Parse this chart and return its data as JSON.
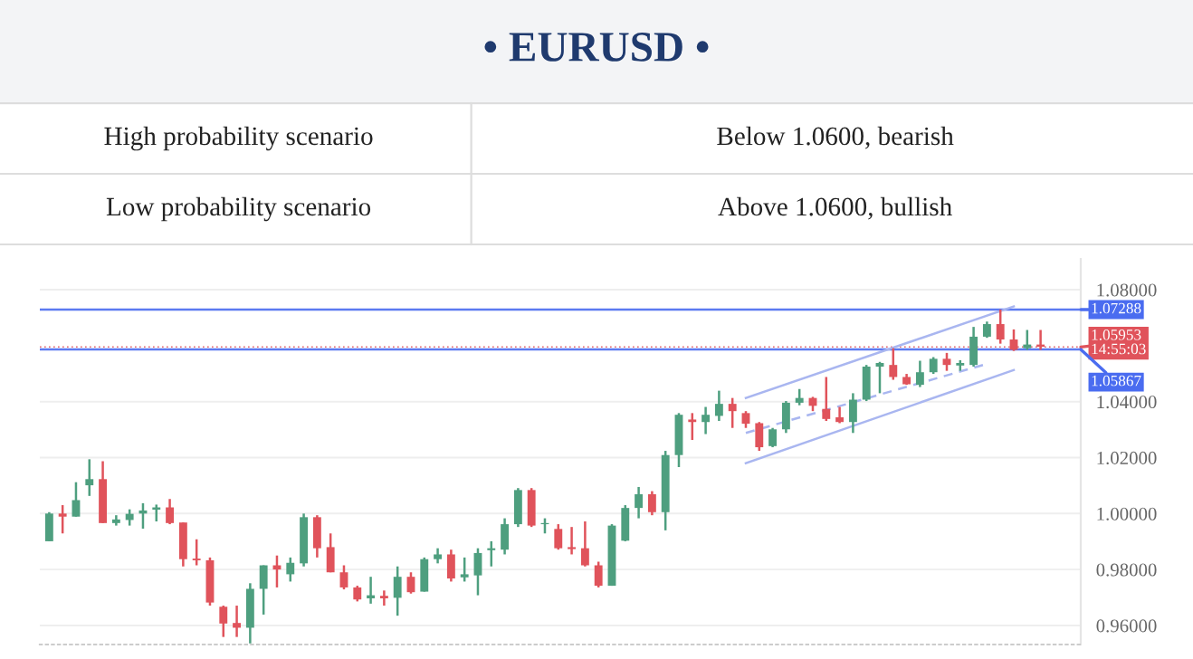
{
  "chart_data": {
    "type": "candlestick",
    "title": "• EURUSD •",
    "annotations": [
      "High probability scenario",
      "Below 1.0600, bearish",
      "Low probability scenario",
      "Above 1.0600, bullish"
    ],
    "categories": [
      null,
      null,
      null,
      null,
      null,
      null,
      null,
      null,
      null,
      null,
      null,
      null,
      null,
      null,
      null,
      null,
      null,
      null,
      null,
      null,
      null,
      null,
      null,
      null,
      null,
      null,
      null,
      null,
      null,
      null,
      null,
      null,
      null,
      null,
      null,
      null,
      null,
      null,
      null,
      null,
      null,
      null,
      null,
      null,
      null,
      null,
      null,
      null,
      null,
      null,
      null,
      null,
      null,
      null,
      null,
      null,
      null,
      null,
      null,
      null,
      null,
      null,
      null,
      null,
      null,
      null,
      null,
      null,
      null,
      null,
      null,
      null,
      null,
      null,
      null
    ],
    "ohlc": [
      [
        0.9901,
        1.0005,
        0.9901,
        1.0
      ],
      [
        1.0,
        1.003,
        0.9929,
        0.9989
      ],
      [
        0.9989,
        1.0112,
        0.9989,
        1.0048
      ],
      [
        1.0101,
        1.0194,
        1.0063,
        1.0123
      ],
      [
        1.0123,
        1.0187,
        0.9966,
        0.9966
      ],
      [
        0.9966,
        0.9994,
        0.9957,
        0.9979
      ],
      [
        0.9977,
        1.0015,
        0.9957,
        0.9999
      ],
      [
        1.0,
        1.0037,
        0.9946,
        1.0011
      ],
      [
        1.0014,
        1.0032,
        0.9972,
        1.0022
      ],
      [
        1.0022,
        1.0052,
        0.9962,
        0.9966
      ],
      [
        0.9968,
        0.9968,
        0.9811,
        0.9837
      ],
      [
        0.9839,
        0.9908,
        0.9815,
        0.9833
      ],
      [
        0.9833,
        0.9843,
        0.9671,
        0.9682
      ],
      [
        0.9667,
        0.9671,
        0.9559,
        0.9607
      ],
      [
        0.9609,
        0.9671,
        0.9559,
        0.9592
      ],
      [
        0.9592,
        0.9751,
        0.9536,
        0.9731
      ],
      [
        0.9731,
        0.9815,
        0.9639,
        0.9815
      ],
      [
        0.9815,
        0.985,
        0.9736,
        0.98
      ],
      [
        0.9783,
        0.9843,
        0.9757,
        0.9824
      ],
      [
        0.9822,
        1.0,
        0.9811,
        0.9987
      ],
      [
        0.9987,
        0.9994,
        0.9843,
        0.9876
      ],
      [
        0.988,
        0.9929,
        0.979,
        0.979
      ],
      [
        0.979,
        0.9815,
        0.9729,
        0.9736
      ],
      [
        0.9736,
        0.9742,
        0.9686,
        0.9693
      ],
      [
        0.9697,
        0.9774,
        0.9678,
        0.9708
      ],
      [
        0.9706,
        0.9725,
        0.9671,
        0.9697
      ],
      [
        0.9699,
        0.9811,
        0.9635,
        0.9774
      ],
      [
        0.9774,
        0.979,
        0.9714,
        0.9719
      ],
      [
        0.9721,
        0.9843,
        0.9721,
        0.9837
      ],
      [
        0.9837,
        0.9876,
        0.9822,
        0.9854
      ],
      [
        0.9854,
        0.9871,
        0.9757,
        0.9768
      ],
      [
        0.9772,
        0.9843,
        0.9757,
        0.9783
      ],
      [
        0.9779,
        0.9876,
        0.9708,
        0.9859
      ],
      [
        0.9869,
        0.9901,
        0.9811,
        0.9876
      ],
      [
        0.9871,
        0.9983,
        0.9854,
        0.9962
      ],
      [
        0.9962,
        1.0091,
        0.9952,
        1.0084
      ],
      [
        1.0084,
        1.0091,
        0.9952,
        0.9957
      ],
      [
        0.9962,
        0.9983,
        0.9929,
        0.9966
      ],
      [
        0.9945,
        0.9962,
        0.9871,
        0.9876
      ],
      [
        0.988,
        0.9952,
        0.9854,
        0.9873
      ],
      [
        0.9876,
        0.9972,
        0.9811,
        0.9815
      ],
      [
        0.9815,
        0.9828,
        0.9736,
        0.9742
      ],
      [
        0.9742,
        0.9962,
        0.9742,
        0.9957
      ],
      [
        0.9903,
        1.003,
        0.9901,
        1.002
      ],
      [
        1.002,
        1.0095,
        0.9983,
        1.0069
      ],
      [
        1.0069,
        1.008,
        0.9994,
        1.0005
      ],
      [
        1.0005,
        1.0224,
        0.994,
        1.0209
      ],
      [
        1.0209,
        1.0359,
        1.0166,
        1.0353
      ],
      [
        1.0336,
        1.0359,
        1.0263,
        1.0327
      ],
      [
        1.0327,
        1.0381,
        1.0284,
        1.0353
      ],
      [
        1.0349,
        1.0439,
        1.0331,
        1.0392
      ],
      [
        1.0392,
        1.0413,
        1.0306,
        1.0366
      ],
      [
        1.0359,
        1.0366,
        1.0306,
        1.0321
      ],
      [
        1.0323,
        1.0327,
        1.0224,
        1.0237
      ],
      [
        1.0241,
        1.0306,
        1.0237,
        1.0301
      ],
      [
        1.0301,
        1.0402,
        1.0288,
        1.0396
      ],
      [
        1.0396,
        1.0445,
        1.0387,
        1.0413
      ],
      [
        1.0413,
        1.0417,
        1.0366,
        1.0385
      ],
      [
        1.0374,
        1.0488,
        1.0331,
        1.0338
      ],
      [
        1.0344,
        1.0381,
        1.0323,
        1.0327
      ],
      [
        1.0327,
        1.043,
        1.0288,
        1.0407
      ],
      [
        1.0407,
        1.0531,
        1.0402,
        1.0525
      ],
      [
        1.0525,
        1.0542,
        1.043,
        1.0538
      ],
      [
        1.0531,
        1.0591,
        1.0478,
        1.0488
      ],
      [
        1.0488,
        1.0499,
        1.046,
        1.0462
      ],
      [
        1.046,
        1.0546,
        1.0452,
        1.0505
      ],
      [
        1.0505,
        1.0559,
        1.0499,
        1.0553
      ],
      [
        1.0553,
        1.0574,
        1.051,
        1.0531
      ],
      [
        1.0529,
        1.0548,
        1.051,
        1.0538
      ],
      [
        1.0531,
        1.0667,
        1.0525,
        1.0632
      ],
      [
        1.0632,
        1.0686,
        1.0628,
        1.0677
      ],
      [
        1.0677,
        1.0729,
        1.0607,
        1.0622
      ],
      [
        1.0622,
        1.0658,
        1.0581,
        1.0585
      ],
      [
        1.0591,
        1.0656,
        1.0585,
        1.0604
      ],
      [
        1.0604,
        1.0656,
        1.0585,
        1.0596
      ]
    ],
    "colors": [
      "#4e9f7f",
      "#e0535b",
      "#4e9f7f",
      "#4e9f7f",
      "#e0535b",
      "#4e9f7f",
      "#4e9f7f",
      "#4e9f7f",
      "#4e9f7f",
      "#e0535b",
      "#e0535b",
      "#e0535b",
      "#e0535b",
      "#e0535b",
      "#e0535b",
      "#4e9f7f",
      "#4e9f7f",
      "#e0535b",
      "#4e9f7f",
      "#4e9f7f",
      "#e0535b",
      "#e0535b",
      "#e0535b",
      "#e0535b",
      "#4e9f7f",
      "#e0535b",
      "#4e9f7f",
      "#e0535b",
      "#4e9f7f",
      "#4e9f7f",
      "#e0535b",
      "#4e9f7f",
      "#4e9f7f",
      "#4e9f7f",
      "#4e9f7f",
      "#4e9f7f",
      "#e0535b",
      "#4e9f7f",
      "#e0535b",
      "#e0535b",
      "#e0535b",
      "#e0535b",
      "#4e9f7f",
      "#4e9f7f",
      "#4e9f7f",
      "#e0535b",
      "#4e9f7f",
      "#4e9f7f",
      "#e0535b",
      "#4e9f7f",
      "#4e9f7f",
      "#e0535b",
      "#e0535b",
      "#e0535b",
      "#4e9f7f",
      "#4e9f7f",
      "#4e9f7f",
      "#e0535b",
      "#e0535b",
      "#e0535b",
      "#4e9f7f",
      "#4e9f7f",
      "#4e9f7f",
      "#e0535b",
      "#e0535b",
      "#4e9f7f",
      "#4e9f7f",
      "#e0535b",
      "#4e9f7f",
      "#4e9f7f",
      "#4e9f7f",
      "#e0535b",
      "#e0535b",
      "#4e9f7f",
      "#e0535b"
    ],
    "series": [
      {
        "type": "line",
        "color": "#a9b6f0",
        "values": [
          null,
          null,
          null,
          null,
          null,
          null,
          null,
          null,
          null,
          null,
          null,
          null,
          null,
          null,
          null,
          null,
          null,
          null,
          null,
          null,
          null,
          null,
          null,
          null,
          null,
          null,
          null,
          null,
          null,
          null,
          null,
          null,
          null,
          null,
          null,
          null,
          null,
          null,
          null,
          null,
          null,
          null,
          null,
          null,
          null,
          null,
          null,
          null,
          null,
          null,
          null,
          null,
          1.0413,
          null,
          null,
          null,
          null,
          null,
          null,
          null,
          null,
          null,
          null,
          null,
          null,
          null,
          null,
          null,
          null,
          null,
          null,
          null,
          1.074,
          null,
          null
        ],
        "line_style": "solid"
      },
      {
        "type": "line",
        "color": "#a9b6f0",
        "values": [
          null,
          null,
          null,
          null,
          null,
          null,
          null,
          null,
          null,
          null,
          null,
          null,
          null,
          null,
          null,
          null,
          null,
          null,
          null,
          null,
          null,
          null,
          null,
          null,
          null,
          null,
          null,
          null,
          null,
          null,
          null,
          null,
          null,
          null,
          null,
          null,
          null,
          null,
          null,
          null,
          null,
          null,
          null,
          null,
          null,
          null,
          null,
          null,
          null,
          null,
          null,
          null,
          1.018,
          null,
          null,
          null,
          null,
          null,
          null,
          null,
          null,
          null,
          null,
          null,
          null,
          null,
          null,
          null,
          null,
          null,
          null,
          null,
          1.0513,
          null,
          null
        ],
        "line_style": "solid"
      },
      {
        "type": "line",
        "color": "#a9b6f0",
        "values": [
          null,
          null,
          null,
          null,
          null,
          null,
          null,
          null,
          null,
          null,
          null,
          null,
          null,
          null,
          null,
          null,
          null,
          null,
          null,
          null,
          null,
          null,
          null,
          null,
          null,
          null,
          null,
          null,
          null,
          null,
          null,
          null,
          null,
          null,
          null,
          null,
          null,
          null,
          null,
          null,
          null,
          null,
          null,
          null,
          null,
          null,
          null,
          null,
          null,
          null,
          null,
          null,
          1.0288,
          null,
          null,
          null,
          null,
          null,
          null,
          null,
          null,
          null,
          null,
          null,
          null,
          null,
          null,
          null,
          null,
          null,
          1.0535,
          null,
          null,
          null,
          null
        ],
        "line_style": "dashed"
      }
    ],
    "ylim": [
      0.9532,
      1.091
    ],
    "yticks": [
      {
        "value": 0.96,
        "label": "0.96000"
      },
      {
        "value": 0.98,
        "label": "0.98000"
      },
      {
        "value": 1.0,
        "label": "1.00000"
      },
      {
        "value": 1.02,
        "label": "1.02000"
      },
      {
        "value": 1.04,
        "label": "1.04000"
      },
      {
        "value": 1.08,
        "label": "1.08000"
      }
    ],
    "ref_lines": [
      {
        "axis": "y",
        "value": 1.07288,
        "label": "1.07288",
        "color": "#4a6cf0",
        "line_style": "solid"
      },
      {
        "axis": "y",
        "value": 1.05953,
        "label": "1.05953\n14:55:03",
        "color": "#e0535b",
        "line_style": "dotted"
      },
      {
        "axis": "y",
        "value": 1.05867,
        "label": "1.05867",
        "color": "#4a6cf0",
        "line_style": "solid"
      }
    ],
    "grid": "y"
  }
}
